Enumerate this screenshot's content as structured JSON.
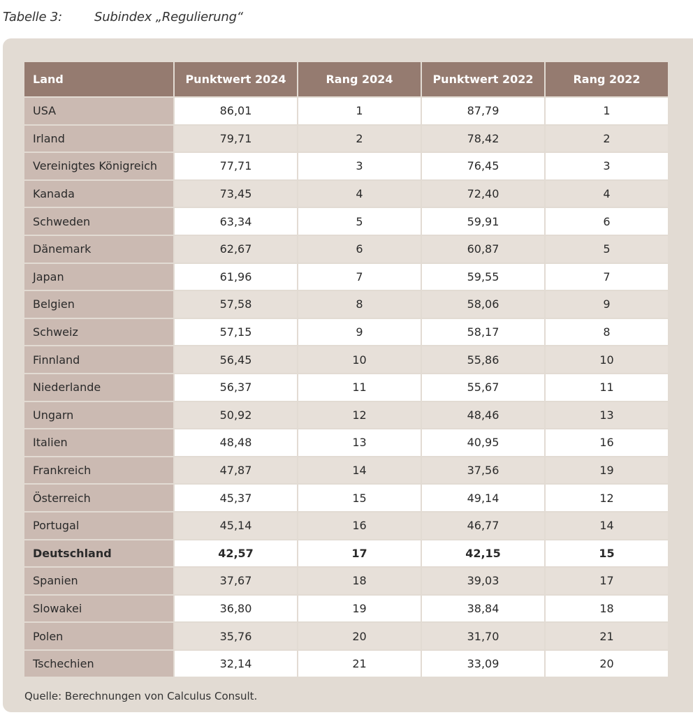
{
  "caption": {
    "label": "Tabelle 3:",
    "title": "Subindex „Regulierung“"
  },
  "table": {
    "headers": [
      "Land",
      "Punktwert 2024",
      "Rang 2024",
      "Punktwert 2022",
      "Rang 2022"
    ],
    "rows": [
      [
        "USA",
        "86,01",
        "1",
        "87,79",
        "1"
      ],
      [
        "Irland",
        "79,71",
        "2",
        "78,42",
        "2"
      ],
      [
        "Vereinigtes Königreich",
        "77,71",
        "3",
        "76,45",
        "3"
      ],
      [
        "Kanada",
        "73,45",
        "4",
        "72,40",
        "4"
      ],
      [
        "Schweden",
        "63,34",
        "5",
        "59,91",
        "6"
      ],
      [
        "Dänemark",
        "62,67",
        "6",
        "60,87",
        "5"
      ],
      [
        "Japan",
        "61,96",
        "7",
        "59,55",
        "7"
      ],
      [
        "Belgien",
        "57,58",
        "8",
        "58,06",
        "9"
      ],
      [
        "Schweiz",
        "57,15",
        "9",
        "58,17",
        "8"
      ],
      [
        "Finnland",
        "56,45",
        "10",
        "55,86",
        "10"
      ],
      [
        "Niederlande",
        "56,37",
        "11",
        "55,67",
        "11"
      ],
      [
        "Ungarn",
        "50,92",
        "12",
        "48,46",
        "13"
      ],
      [
        "Italien",
        "48,48",
        "13",
        "40,95",
        "16"
      ],
      [
        "Frankreich",
        "47,87",
        "14",
        "37,56",
        "19"
      ],
      [
        "Österreich",
        "45,37",
        "15",
        "49,14",
        "12"
      ],
      [
        "Portugal",
        "45,14",
        "16",
        "46,77",
        "14"
      ],
      [
        "Deutschland",
        "42,57",
        "17",
        "42,15",
        "15"
      ],
      [
        "Spanien",
        "37,67",
        "18",
        "39,03",
        "17"
      ],
      [
        "Slowakei",
        "36,80",
        "19",
        "38,84",
        "18"
      ],
      [
        "Polen",
        "35,76",
        "20",
        "31,70",
        "21"
      ],
      [
        "Tschechien",
        "32,14",
        "21",
        "33,09",
        "20"
      ]
    ],
    "highlight_row": "Deutschland"
  },
  "source": "Quelle: Berechnungen von Calculus Consult.",
  "colors": {
    "panel": "#e2dbd3",
    "header": "#957b70",
    "land_column": "#cbbab2",
    "row_alt": "#e7e0d9"
  }
}
